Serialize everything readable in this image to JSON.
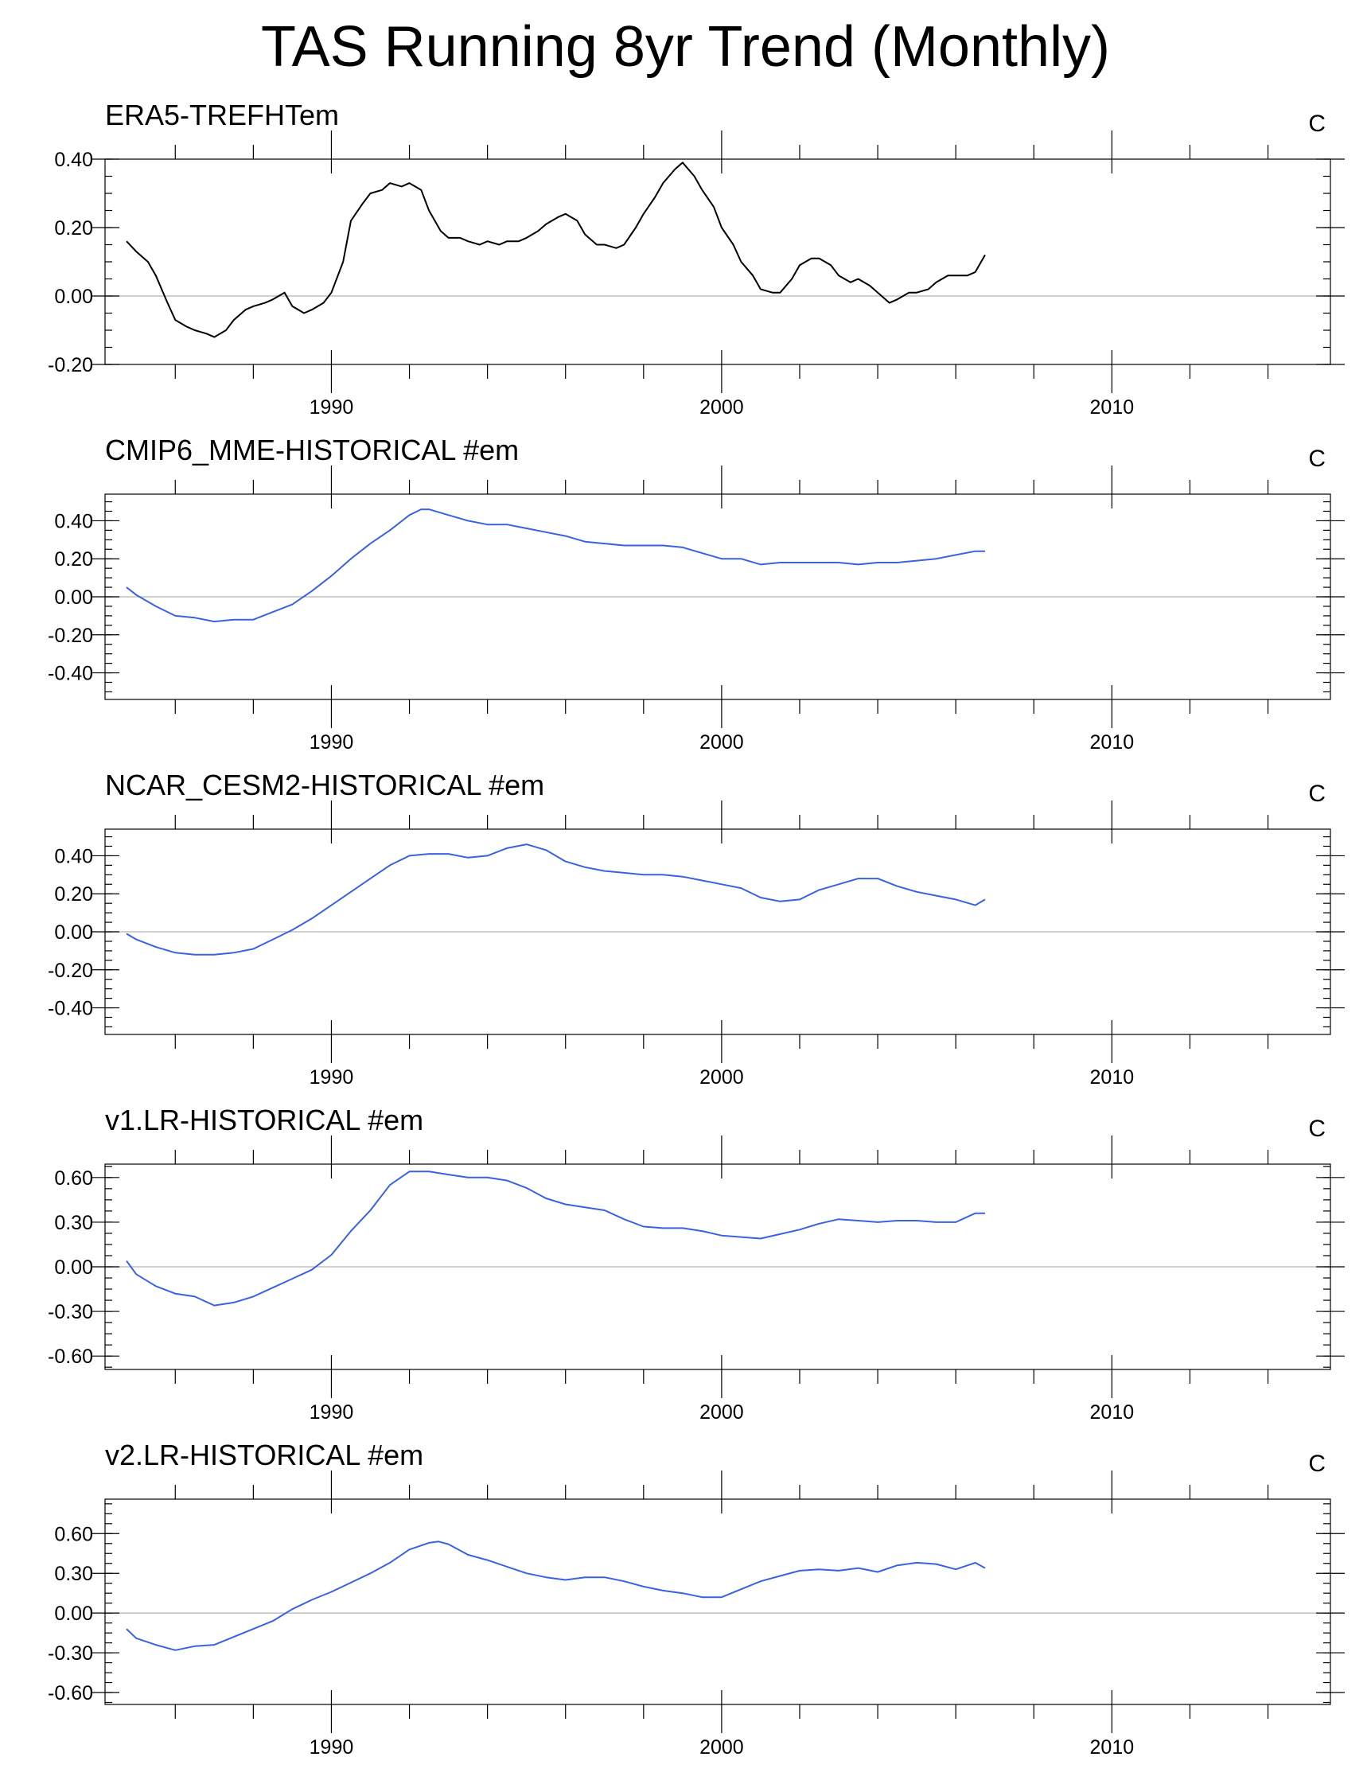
{
  "title": "TAS Running 8yr Trend (Monthly)",
  "colors": {
    "obs": "#000000",
    "model": "#3a62e0",
    "zero_line": "#b4b4b4"
  },
  "chart_data": [
    {
      "type": "line",
      "title": "ERA5-TREFHTem",
      "unit": "C",
      "xlim": [
        1984.2,
        2015.6
      ],
      "ylim": [
        -0.2,
        0.4
      ],
      "yticks": [
        -0.2,
        0.0,
        0.2,
        0.4
      ],
      "ytick_labels": [
        "-0.20",
        "0.00",
        "0.20",
        "0.40"
      ],
      "xticks": [
        1990,
        2000,
        2010
      ],
      "xtick_labels": [
        "1990",
        "2000",
        "2010"
      ],
      "grid": false,
      "series": [
        {
          "color": "#000000",
          "x": [
            1984.75,
            1985.0,
            1985.3,
            1985.5,
            1985.8,
            1986.0,
            1986.3,
            1986.5,
            1986.8,
            1987.0,
            1987.3,
            1987.5,
            1987.8,
            1988.0,
            1988.3,
            1988.5,
            1988.8,
            1989.0,
            1989.3,
            1989.5,
            1989.8,
            1990.0,
            1990.3,
            1990.5,
            1990.8,
            1991.0,
            1991.3,
            1991.5,
            1991.8,
            1992.0,
            1992.3,
            1992.5,
            1992.8,
            1993.0,
            1993.3,
            1993.5,
            1993.8,
            1994.0,
            1994.3,
            1994.5,
            1994.8,
            1995.0,
            1995.3,
            1995.5,
            1995.8,
            1996.0,
            1996.3,
            1996.5,
            1996.8,
            1997.0,
            1997.3,
            1997.5,
            1997.8,
            1998.0,
            1998.3,
            1998.5,
            1998.8,
            1999.0,
            1999.3,
            1999.5,
            1999.8,
            2000.0,
            2000.3,
            2000.5,
            2000.8,
            2001.0,
            2001.3,
            2001.5,
            2001.8,
            2002.0,
            2002.3,
            2002.5,
            2002.8,
            2003.0,
            2003.3,
            2003.5,
            2003.8,
            2004.0,
            2004.3,
            2004.5,
            2004.8,
            2005.0,
            2005.3,
            2005.5,
            2005.8,
            2006.0,
            2006.3,
            2006.5,
            2006.75
          ],
          "y": [
            0.16,
            0.13,
            0.1,
            0.06,
            -0.02,
            -0.07,
            -0.09,
            -0.1,
            -0.11,
            -0.12,
            -0.1,
            -0.07,
            -0.04,
            -0.03,
            -0.02,
            -0.01,
            0.01,
            -0.03,
            -0.05,
            -0.04,
            -0.02,
            0.01,
            0.1,
            0.22,
            0.27,
            0.3,
            0.31,
            0.33,
            0.32,
            0.33,
            0.31,
            0.25,
            0.19,
            0.17,
            0.17,
            0.16,
            0.15,
            0.16,
            0.15,
            0.16,
            0.16,
            0.17,
            0.19,
            0.21,
            0.23,
            0.24,
            0.22,
            0.18,
            0.15,
            0.15,
            0.14,
            0.15,
            0.2,
            0.24,
            0.29,
            0.33,
            0.37,
            0.39,
            0.35,
            0.31,
            0.26,
            0.2,
            0.15,
            0.1,
            0.06,
            0.02,
            0.01,
            0.01,
            0.05,
            0.09,
            0.11,
            0.11,
            0.09,
            0.06,
            0.04,
            0.05,
            0.03,
            0.01,
            -0.02,
            -0.01,
            0.01,
            0.01,
            0.02,
            0.04,
            0.06,
            0.06,
            0.06,
            0.07,
            0.12
          ]
        }
      ]
    },
    {
      "type": "line",
      "title": "CMIP6_MME-HISTORICAL  #em",
      "unit": "C",
      "xlim": [
        1984.2,
        2015.6
      ],
      "ylim": [
        -0.54,
        0.54
      ],
      "yticks": [
        -0.4,
        -0.2,
        0.0,
        0.2,
        0.4
      ],
      "ytick_labels": [
        "-0.40",
        "-0.20",
        "0.00",
        "0.20",
        "0.40"
      ],
      "xticks": [
        1990,
        2000,
        2010
      ],
      "xtick_labels": [
        "1990",
        "2000",
        "2010"
      ],
      "grid": false,
      "series": [
        {
          "color": "#3a62e0",
          "x": [
            1984.75,
            1985.0,
            1985.5,
            1986.0,
            1986.5,
            1987.0,
            1987.5,
            1988.0,
            1988.5,
            1989.0,
            1989.5,
            1990.0,
            1990.5,
            1991.0,
            1991.5,
            1992.0,
            1992.3,
            1992.5,
            1993.0,
            1993.5,
            1994.0,
            1994.5,
            1995.0,
            1995.5,
            1996.0,
            1996.5,
            1997.0,
            1997.5,
            1998.0,
            1998.5,
            1999.0,
            1999.5,
            2000.0,
            2000.5,
            2001.0,
            2001.5,
            2002.0,
            2002.5,
            2003.0,
            2003.5,
            2004.0,
            2004.5,
            2005.0,
            2005.5,
            2006.0,
            2006.5,
            2006.75
          ],
          "y": [
            0.05,
            0.01,
            -0.05,
            -0.1,
            -0.11,
            -0.13,
            -0.12,
            -0.12,
            -0.08,
            -0.04,
            0.03,
            0.11,
            0.2,
            0.28,
            0.35,
            0.43,
            0.46,
            0.46,
            0.43,
            0.4,
            0.38,
            0.38,
            0.36,
            0.34,
            0.32,
            0.29,
            0.28,
            0.27,
            0.27,
            0.27,
            0.26,
            0.23,
            0.2,
            0.2,
            0.17,
            0.18,
            0.18,
            0.18,
            0.18,
            0.17,
            0.18,
            0.18,
            0.19,
            0.2,
            0.22,
            0.24,
            0.24
          ]
        }
      ]
    },
    {
      "type": "line",
      "title": "NCAR_CESM2-HISTORICAL  #em",
      "unit": "C",
      "xlim": [
        1984.2,
        2015.6
      ],
      "ylim": [
        -0.54,
        0.54
      ],
      "yticks": [
        -0.4,
        -0.2,
        0.0,
        0.2,
        0.4
      ],
      "ytick_labels": [
        "-0.40",
        "-0.20",
        "0.00",
        "0.20",
        "0.40"
      ],
      "xticks": [
        1990,
        2000,
        2010
      ],
      "xtick_labels": [
        "1990",
        "2000",
        "2010"
      ],
      "grid": false,
      "series": [
        {
          "color": "#3a62e0",
          "x": [
            1984.75,
            1985.0,
            1985.5,
            1986.0,
            1986.5,
            1987.0,
            1987.5,
            1988.0,
            1988.5,
            1989.0,
            1989.5,
            1990.0,
            1990.5,
            1991.0,
            1991.5,
            1992.0,
            1992.5,
            1993.0,
            1993.5,
            1994.0,
            1994.5,
            1995.0,
            1995.5,
            1996.0,
            1996.5,
            1997.0,
            1997.5,
            1998.0,
            1998.5,
            1999.0,
            1999.5,
            2000.0,
            2000.5,
            2001.0,
            2001.5,
            2002.0,
            2002.5,
            2003.0,
            2003.5,
            2004.0,
            2004.5,
            2005.0,
            2005.5,
            2006.0,
            2006.5,
            2006.75
          ],
          "y": [
            -0.01,
            -0.04,
            -0.08,
            -0.11,
            -0.12,
            -0.12,
            -0.11,
            -0.09,
            -0.04,
            0.01,
            0.07,
            0.14,
            0.21,
            0.28,
            0.35,
            0.4,
            0.41,
            0.41,
            0.39,
            0.4,
            0.44,
            0.46,
            0.43,
            0.37,
            0.34,
            0.32,
            0.31,
            0.3,
            0.3,
            0.29,
            0.27,
            0.25,
            0.23,
            0.18,
            0.16,
            0.17,
            0.22,
            0.25,
            0.28,
            0.28,
            0.24,
            0.21,
            0.19,
            0.17,
            0.14,
            0.17
          ]
        }
      ]
    },
    {
      "type": "line",
      "title": "v1.LR-HISTORICAL  #em",
      "unit": "C",
      "xlim": [
        1984.2,
        2015.6
      ],
      "ylim": [
        -0.69,
        0.69
      ],
      "yticks": [
        -0.6,
        -0.3,
        0.0,
        0.3,
        0.6
      ],
      "ytick_labels": [
        "-0.60",
        "-0.30",
        "0.00",
        "0.30",
        "0.60"
      ],
      "xticks": [
        1990,
        2000,
        2010
      ],
      "xtick_labels": [
        "1990",
        "2000",
        "2010"
      ],
      "grid": false,
      "series": [
        {
          "color": "#3a62e0",
          "x": [
            1984.75,
            1985.0,
            1985.5,
            1986.0,
            1986.5,
            1987.0,
            1987.5,
            1988.0,
            1988.5,
            1989.0,
            1989.5,
            1990.0,
            1990.5,
            1991.0,
            1991.5,
            1992.0,
            1992.5,
            1993.0,
            1993.5,
            1994.0,
            1994.5,
            1995.0,
            1995.5,
            1996.0,
            1996.5,
            1997.0,
            1997.5,
            1998.0,
            1998.5,
            1999.0,
            1999.5,
            2000.0,
            2000.5,
            2001.0,
            2001.5,
            2002.0,
            2002.5,
            2003.0,
            2003.5,
            2004.0,
            2004.5,
            2005.0,
            2005.5,
            2006.0,
            2006.5,
            2006.75
          ],
          "y": [
            0.04,
            -0.05,
            -0.13,
            -0.18,
            -0.2,
            -0.26,
            -0.24,
            -0.2,
            -0.14,
            -0.08,
            -0.02,
            0.08,
            0.24,
            0.38,
            0.55,
            0.64,
            0.64,
            0.62,
            0.6,
            0.6,
            0.58,
            0.53,
            0.46,
            0.42,
            0.4,
            0.38,
            0.32,
            0.27,
            0.26,
            0.26,
            0.24,
            0.21,
            0.2,
            0.19,
            0.22,
            0.25,
            0.29,
            0.32,
            0.31,
            0.3,
            0.31,
            0.31,
            0.3,
            0.3,
            0.36,
            0.36
          ]
        }
      ]
    },
    {
      "type": "line",
      "title": "v2.LR-HISTORICAL  #em",
      "unit": "C",
      "xlim": [
        1984.2,
        2015.6
      ],
      "ylim": [
        -0.69,
        0.86
      ],
      "yticks": [
        -0.6,
        -0.3,
        0.0,
        0.3,
        0.6
      ],
      "ytick_labels": [
        "-0.60",
        "-0.30",
        "0.00",
        "0.30",
        "0.60"
      ],
      "xticks": [
        1990,
        2000,
        2010
      ],
      "xtick_labels": [
        "1990",
        "2000",
        "2010"
      ],
      "grid": false,
      "series": [
        {
          "color": "#3a62e0",
          "x": [
            1984.75,
            1985.0,
            1985.5,
            1986.0,
            1986.5,
            1987.0,
            1987.5,
            1988.0,
            1988.5,
            1989.0,
            1989.5,
            1990.0,
            1990.5,
            1991.0,
            1991.5,
            1992.0,
            1992.5,
            1992.75,
            1993.0,
            1993.5,
            1994.0,
            1994.5,
            1995.0,
            1995.5,
            1996.0,
            1996.5,
            1997.0,
            1997.5,
            1998.0,
            1998.5,
            1999.0,
            1999.5,
            2000.0,
            2000.5,
            2001.0,
            2001.5,
            2002.0,
            2002.5,
            2003.0,
            2003.5,
            2004.0,
            2004.5,
            2005.0,
            2005.5,
            2006.0,
            2006.5,
            2006.75
          ],
          "y": [
            -0.12,
            -0.19,
            -0.24,
            -0.28,
            -0.25,
            -0.24,
            -0.18,
            -0.12,
            -0.06,
            0.03,
            0.1,
            0.16,
            0.23,
            0.3,
            0.38,
            0.48,
            0.53,
            0.54,
            0.52,
            0.44,
            0.4,
            0.35,
            0.3,
            0.27,
            0.25,
            0.27,
            0.27,
            0.24,
            0.2,
            0.17,
            0.15,
            0.12,
            0.12,
            0.18,
            0.24,
            0.28,
            0.32,
            0.33,
            0.32,
            0.34,
            0.31,
            0.36,
            0.38,
            0.37,
            0.33,
            0.38,
            0.34
          ]
        }
      ]
    }
  ]
}
